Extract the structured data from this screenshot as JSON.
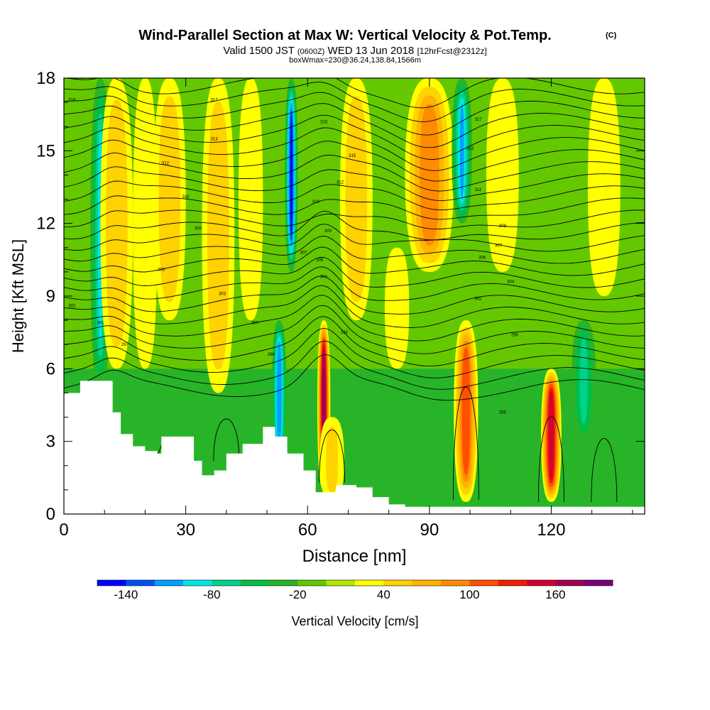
{
  "chart_data": {
    "type": "heatmap",
    "title": "Wind-Parallel Section at Max W: Vertical Velocity & Pot.Temp.",
    "title_mark": "(C)",
    "subtitle": {
      "main": "Valid 1500 JST",
      "utc": "(0600Z)",
      "date": "WED 13 Jun 2018",
      "fcst": "[12hrFcst@2312z]"
    },
    "boxinfo": "boxWmax=230@36.24,138.84,1566m",
    "xlabel": "Distance [nm]",
    "ylabel": "Height [Kft MSL]",
    "xlim": [
      0,
      143
    ],
    "ylim": [
      0,
      18
    ],
    "x_ticks": [
      "0",
      "30",
      "60",
      "90",
      "120"
    ],
    "y_ticks": [
      "0",
      "3",
      "6",
      "9",
      "12",
      "15",
      "18"
    ],
    "colorbar": {
      "label": "Vertical Velocity [cm/s]",
      "ticks": [
        "-140",
        "-80",
        "-20",
        "40",
        "100",
        "160"
      ],
      "tick_values": [
        -140,
        -80,
        -20,
        40,
        100,
        160
      ],
      "range": [
        -160,
        200
      ],
      "colors": [
        "#0000ff",
        "#0050f0",
        "#00a0ff",
        "#00e6e6",
        "#00d28c",
        "#00be46",
        "#28b428",
        "#64c800",
        "#b4e600",
        "#ffff00",
        "#ffd200",
        "#ffb400",
        "#ff8c00",
        "#ff5000",
        "#f01e00",
        "#d20032",
        "#a00050",
        "#780078"
      ]
    },
    "w_features": [
      {
        "x": 9,
        "z0": 5,
        "z1": 18,
        "w": -80,
        "width": 2.5
      },
      {
        "x": 13,
        "z0": 6,
        "z1": 18,
        "w": 50,
        "width": 4
      },
      {
        "x": 20,
        "z0": 6,
        "z1": 18,
        "w": 20,
        "width": 3
      },
      {
        "x": 26,
        "z0": 8,
        "z1": 18,
        "w": 50,
        "width": 4
      },
      {
        "x": 38,
        "z0": 5,
        "z1": 18,
        "w": 55,
        "width": 4
      },
      {
        "x": 46,
        "z0": 8,
        "z1": 18,
        "w": 25,
        "width": 3
      },
      {
        "x": 56,
        "z0": 10,
        "z1": 18,
        "w": -140,
        "width": 1.6
      },
      {
        "x": 53,
        "z0": 2,
        "z1": 8,
        "w": -110,
        "width": 1.8
      },
      {
        "x": 64,
        "z0": 1,
        "z1": 8,
        "w": 185,
        "width": 1.6
      },
      {
        "x": 66,
        "z0": 0.5,
        "z1": 4,
        "w": 40,
        "width": 3
      },
      {
        "x": 72,
        "z0": 8,
        "z1": 18,
        "w": 55,
        "width": 4
      },
      {
        "x": 82,
        "z0": 6,
        "z1": 11,
        "w": 30,
        "width": 3
      },
      {
        "x": 90,
        "z0": 10,
        "z1": 18,
        "w": 95,
        "width": 6
      },
      {
        "x": 98,
        "z0": 12,
        "z1": 18,
        "w": -100,
        "width": 2.5
      },
      {
        "x": 99,
        "z0": 0.5,
        "z1": 8,
        "w": 115,
        "width": 3
      },
      {
        "x": 108,
        "z0": 10,
        "z1": 18,
        "w": 35,
        "width": 4
      },
      {
        "x": 120,
        "z0": 0.5,
        "z1": 6,
        "w": 150,
        "width": 2.5
      },
      {
        "x": 128,
        "z0": 3,
        "z1": 8,
        "w": -60,
        "width": 3
      },
      {
        "x": 133,
        "z0": 9,
        "z1": 18,
        "w": 30,
        "width": 4
      }
    ],
    "terrain": [
      [
        0,
        5.0
      ],
      [
        4,
        5.5
      ],
      [
        8,
        5.5
      ],
      [
        12,
        4.2
      ],
      [
        14,
        3.3
      ],
      [
        17,
        2.8
      ],
      [
        20,
        2.6
      ],
      [
        23,
        2.5
      ],
      [
        24,
        3.2
      ],
      [
        30,
        3.2
      ],
      [
        32,
        2.2
      ],
      [
        34,
        1.6
      ],
      [
        37,
        1.8
      ],
      [
        40,
        2.5
      ],
      [
        44,
        2.9
      ],
      [
        49,
        3.6
      ],
      [
        52,
        3.2
      ],
      [
        55,
        2.5
      ],
      [
        59,
        1.8
      ],
      [
        62,
        0.9
      ],
      [
        67,
        1.2
      ],
      [
        72,
        1.1
      ],
      [
        76,
        0.7
      ],
      [
        80,
        0.4
      ],
      [
        84,
        0.3
      ],
      [
        143,
        0.3
      ]
    ],
    "theta_labels": [
      {
        "text": "318",
        "x": 2,
        "z": 17.1
      },
      {
        "text": "317",
        "x": 37,
        "z": 17.1
      },
      {
        "text": "315",
        "x": 64,
        "z": 16.2
      },
      {
        "text": "317",
        "x": 102,
        "z": 16.3
      },
      {
        "text": "313",
        "x": 37,
        "z": 15.5
      },
      {
        "text": "315",
        "x": 71,
        "z": 14.8
      },
      {
        "text": "313",
        "x": 100,
        "z": 15.1
      },
      {
        "text": "312",
        "x": 25,
        "z": 14.5
      },
      {
        "text": "312",
        "x": 68,
        "z": 13.7
      },
      {
        "text": "311",
        "x": 102,
        "z": 13.4
      },
      {
        "text": "310",
        "x": 30,
        "z": 13.1
      },
      {
        "text": "310",
        "x": 62,
        "z": 12.9
      },
      {
        "text": "309",
        "x": 33,
        "z": 11.8
      },
      {
        "text": "309",
        "x": 65,
        "z": 11.7
      },
      {
        "text": "308",
        "x": 108,
        "z": 11.9
      },
      {
        "text": "307",
        "x": 59,
        "z": 10.8
      },
      {
        "text": "307",
        "x": 107,
        "z": 11.1
      },
      {
        "text": "306",
        "x": 63,
        "z": 10.5
      },
      {
        "text": "306",
        "x": 103,
        "z": 10.6
      },
      {
        "text": "305",
        "x": 24,
        "z": 10.1
      },
      {
        "text": "304",
        "x": 64,
        "z": 9.8
      },
      {
        "text": "304",
        "x": 110,
        "z": 9.6
      },
      {
        "text": "303",
        "x": 39,
        "z": 9.1
      },
      {
        "text": "302",
        "x": 102,
        "z": 8.9
      },
      {
        "text": "302",
        "x": 2,
        "z": 8.6
      },
      {
        "text": "301",
        "x": 9,
        "z": 7.9
      },
      {
        "text": "300",
        "x": 47,
        "z": 7.9
      },
      {
        "text": "299",
        "x": 69,
        "z": 7.5
      },
      {
        "text": "298",
        "x": 111,
        "z": 7.4
      },
      {
        "text": "297",
        "x": 15,
        "z": 7.0
      },
      {
        "text": "296",
        "x": 51,
        "z": 6.6
      },
      {
        "text": "295",
        "x": 108,
        "z": 4.2
      }
    ]
  }
}
